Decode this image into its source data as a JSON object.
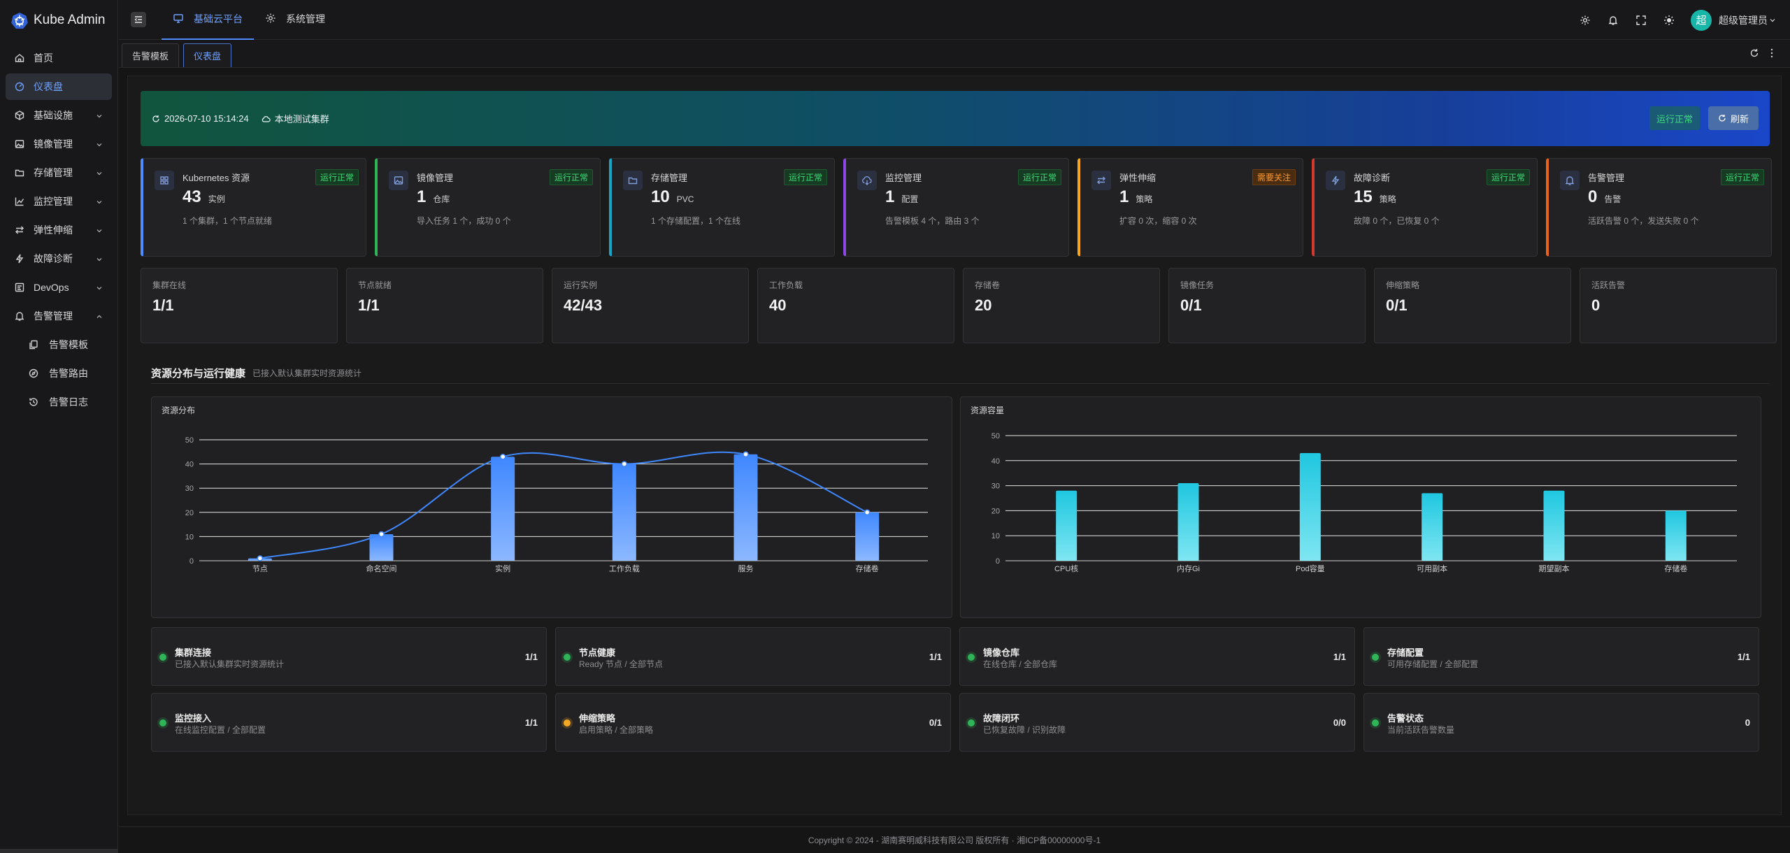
{
  "app": {
    "title": "Kube Admin",
    "brand_color": "#4f8cff"
  },
  "sidebar": {
    "items": [
      {
        "label": "首页",
        "icon": "home-icon",
        "active": false
      },
      {
        "label": "仪表盘",
        "icon": "dashboard-icon",
        "active": true
      },
      {
        "label": "基础设施",
        "icon": "cube-icon",
        "active": false,
        "expandable": true
      },
      {
        "label": "镜像管理",
        "icon": "image-icon",
        "active": false,
        "expandable": true
      },
      {
        "label": "存储管理",
        "icon": "folder-icon",
        "active": false,
        "expandable": true
      },
      {
        "label": "监控管理",
        "icon": "chart-icon",
        "active": false,
        "expandable": true
      },
      {
        "label": "弹性伸缩",
        "icon": "swap-icon",
        "active": false,
        "expandable": true
      },
      {
        "label": "故障诊断",
        "icon": "bolt-icon",
        "active": false,
        "expandable": true
      },
      {
        "label": "DevOps",
        "icon": "devops-icon",
        "active": false,
        "expandable": true
      },
      {
        "label": "告警管理",
        "icon": "bell-icon",
        "active": false,
        "expandable": true,
        "expanded": true
      }
    ],
    "sub_items": [
      {
        "label": "告警模板",
        "icon": "copy-icon"
      },
      {
        "label": "告警路由",
        "icon": "compass-icon"
      },
      {
        "label": "告警日志",
        "icon": "history-icon"
      }
    ]
  },
  "topbar": {
    "nav": [
      {
        "label": "基础云平台",
        "icon": "monitor-icon",
        "active": true
      },
      {
        "label": "系统管理",
        "icon": "gear-icon",
        "active": false
      }
    ],
    "avatar_text": "超",
    "user_name": "超级管理员"
  },
  "tabs": [
    {
      "label": "告警模板",
      "active": false
    },
    {
      "label": "仪表盘",
      "active": true
    }
  ],
  "hero": {
    "timestamp": "2026-07-10 15:14:24",
    "cluster": "本地测试集群",
    "status": "运行正常",
    "refresh_label": "刷新"
  },
  "module_cards": [
    {
      "title": "Kubernetes 资源",
      "badge": "运行正常",
      "badge_type": "ok",
      "value": "43",
      "unit": "实例",
      "desc": "1 个集群，1 个节点就绪",
      "color": "#4f8cff",
      "icon": "grid-icon"
    },
    {
      "title": "镜像管理",
      "badge": "运行正常",
      "badge_type": "ok",
      "value": "1",
      "unit": "仓库",
      "desc": "导入任务 1 个，成功 0 个",
      "color": "#2fb457",
      "icon": "image-icon"
    },
    {
      "title": "存储管理",
      "badge": "运行正常",
      "badge_type": "ok",
      "value": "10",
      "unit": "PVC",
      "desc": "1 个存储配置，1 个在线",
      "color": "#19a3c4",
      "icon": "folder-icon"
    },
    {
      "title": "监控管理",
      "badge": "运行正常",
      "badge_type": "ok",
      "value": "1",
      "unit": "配置",
      "desc": "告警模板 4 个，路由 3 个",
      "color": "#8b46e6",
      "icon": "cloud-download-icon"
    },
    {
      "title": "弹性伸缩",
      "badge": "需要关注",
      "badge_type": "warn",
      "value": "1",
      "unit": "策略",
      "desc": "扩容 0 次，缩容 0 次",
      "color": "#f5a623",
      "icon": "swap-icon"
    },
    {
      "title": "故障诊断",
      "badge": "运行正常",
      "badge_type": "ok",
      "value": "15",
      "unit": "策略",
      "desc": "故障 0 个，已恢复 0 个",
      "color": "#d33a2c",
      "icon": "bolt-icon"
    },
    {
      "title": "告警管理",
      "badge": "运行正常",
      "badge_type": "ok",
      "value": "0",
      "unit": "告警",
      "desc": "活跃告警 0 个，发送失败 0 个",
      "color": "#e8641e",
      "icon": "bell-icon"
    }
  ],
  "stats": [
    {
      "label": "集群在线",
      "value": "1/1"
    },
    {
      "label": "节点就绪",
      "value": "1/1"
    },
    {
      "label": "运行实例",
      "value": "42/43"
    },
    {
      "label": "工作负载",
      "value": "40"
    },
    {
      "label": "存储卷",
      "value": "20"
    },
    {
      "label": "镜像任务",
      "value": "0/1"
    },
    {
      "label": "伸缩策略",
      "value": "0/1"
    },
    {
      "label": "活跃告警",
      "value": "0"
    }
  ],
  "section": {
    "title": "资源分布与运行健康",
    "subtitle": "已接入默认集群实时资源统计"
  },
  "chart_data": [
    {
      "type": "bar",
      "title": "资源分布",
      "overlay": "smooth-line",
      "categories": [
        "节点",
        "命名空间",
        "实例",
        "工作负载",
        "服务",
        "存储卷"
      ],
      "values": [
        1,
        11,
        43,
        40,
        44,
        20
      ],
      "ylim": [
        0,
        50
      ],
      "yticks": [
        0,
        10,
        20,
        30,
        40,
        50
      ],
      "grid": true,
      "color": "#3f87ff"
    },
    {
      "type": "bar",
      "title": "资源容量",
      "categories": [
        "CPU核",
        "内存Gi",
        "Pod容量",
        "可用副本",
        "期望副本",
        "存储卷"
      ],
      "values": [
        28,
        31,
        43,
        27,
        28,
        20
      ],
      "ylim": [
        0,
        50
      ],
      "yticks": [
        0,
        10,
        20,
        30,
        40,
        50
      ],
      "grid": true,
      "color": "#1fc7e0"
    }
  ],
  "health": [
    {
      "name": "集群连接",
      "desc": "已接入默认集群实时资源统计",
      "value": "1/1",
      "status": "ok"
    },
    {
      "name": "节点健康",
      "desc": "Ready 节点 / 全部节点",
      "value": "1/1",
      "status": "ok"
    },
    {
      "name": "镜像仓库",
      "desc": "在线仓库 / 全部仓库",
      "value": "1/1",
      "status": "ok"
    },
    {
      "name": "存储配置",
      "desc": "可用存储配置 / 全部配置",
      "value": "1/1",
      "status": "ok"
    },
    {
      "name": "监控接入",
      "desc": "在线监控配置 / 全部配置",
      "value": "1/1",
      "status": "ok"
    },
    {
      "name": "伸缩策略",
      "desc": "启用策略 / 全部策略",
      "value": "0/1",
      "status": "warn"
    },
    {
      "name": "故障闭环",
      "desc": "已恢复故障 / 识别故障",
      "value": "0/0",
      "status": "ok"
    },
    {
      "name": "告警状态",
      "desc": "当前活跃告警数量",
      "value": "0",
      "status": "ok"
    }
  ],
  "status_colors": {
    "ok": "#2fb457",
    "warn": "#f5a623"
  },
  "footer": {
    "text": "Copyright © 2024 - 湖南赛明威科技有限公司 版权所有 · 湘ICP备00000000号-1"
  }
}
